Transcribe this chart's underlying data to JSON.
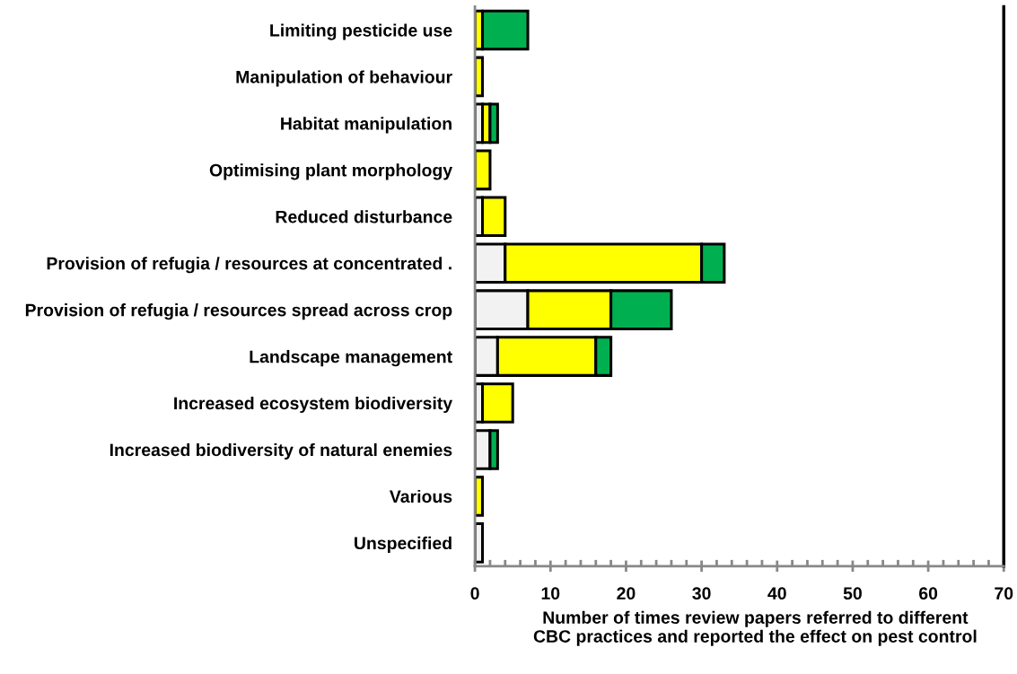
{
  "chart_data": {
    "type": "bar",
    "orientation": "horizontal",
    "stacked": true,
    "categories": [
      "Limiting pesticide use",
      "Manipulation of behaviour",
      "Habitat manipulation",
      "Optimising plant morphology",
      "Reduced disturbance",
      "Provision of refugia / resources at concentrated .",
      "Provision of refugia / resources spread across crop",
      "Landscape management",
      "Increased ecosystem biodiversity",
      "Increased biodiversity of natural enemies",
      "Various",
      "Unspecified"
    ],
    "series": [
      {
        "color": "#f2f2f2",
        "values": [
          0,
          0,
          1,
          0,
          1,
          4,
          7,
          3,
          1,
          2,
          0,
          1
        ]
      },
      {
        "color": "#ffff00",
        "values": [
          1,
          1,
          1,
          2,
          3,
          26,
          11,
          13,
          4,
          0,
          1,
          0
        ]
      },
      {
        "color": "#00b050",
        "values": [
          6,
          0,
          1,
          0,
          0,
          3,
          8,
          2,
          0,
          1,
          0,
          0
        ]
      }
    ],
    "xlim": [
      0,
      70
    ],
    "xticks": [
      0,
      10,
      20,
      30,
      40,
      50,
      60,
      70
    ],
    "xlabel": "Number of times review papers referred to different\nCBC practices and reported the effect on pest control",
    "grid": false,
    "legend": false
  }
}
